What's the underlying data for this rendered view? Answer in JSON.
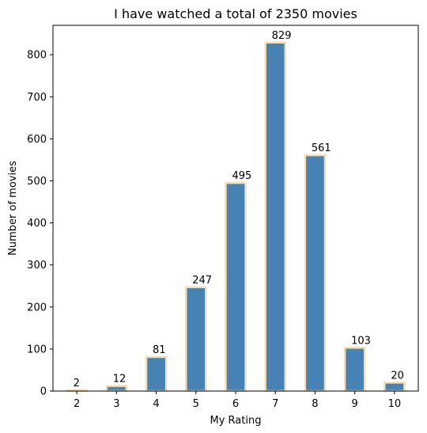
{
  "chart_data": {
    "type": "bar",
    "title": "I have watched a total of 2350 movies",
    "xlabel": "My Rating",
    "ylabel": "Number of movies",
    "categories": [
      "2",
      "3",
      "4",
      "5",
      "6",
      "7",
      "8",
      "9",
      "10"
    ],
    "values": [
      2,
      12,
      81,
      247,
      495,
      829,
      561,
      103,
      20
    ],
    "data_labels": [
      "2",
      "12",
      "81",
      "247",
      "495",
      "829",
      "561",
      "103",
      "20"
    ],
    "yticks": [
      0,
      100,
      200,
      300,
      400,
      500,
      600,
      700,
      800
    ],
    "ylim": [
      0,
      870
    ],
    "grid": false,
    "bar_color": "#4682b4",
    "bar_edge_color": "#f5deb3"
  }
}
